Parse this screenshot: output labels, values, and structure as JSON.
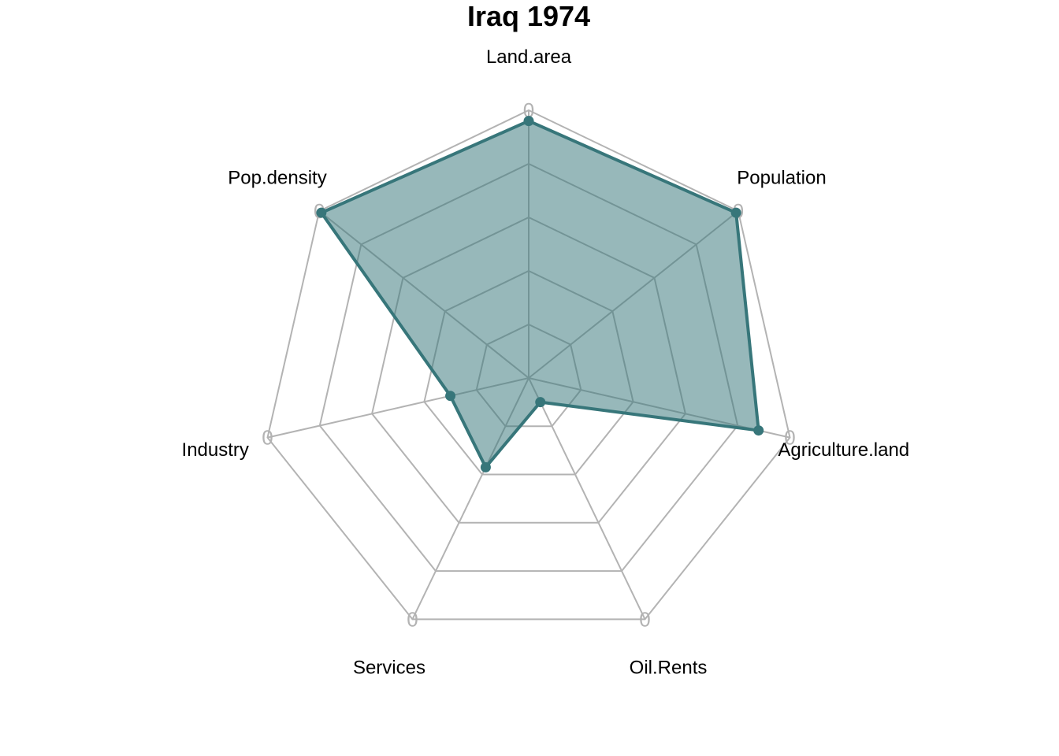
{
  "chart_data": {
    "type": "radar",
    "title": "Iraq 1974",
    "axes": [
      "Land.area",
      "Population",
      "Agriculture.land",
      "Oil.Rents",
      "Services",
      "Industry",
      "Pop.density"
    ],
    "tick_label": "0",
    "grid_levels": 5,
    "range": [
      0,
      1
    ],
    "series": [
      {
        "values": [
          0.96,
          0.99,
          0.88,
          0.1,
          0.37,
          0.3,
          0.99
        ],
        "color": "#37767a",
        "fill": "#37767a",
        "fill_opacity": 0.52
      }
    ],
    "grid_color": "#b3b3b3"
  }
}
